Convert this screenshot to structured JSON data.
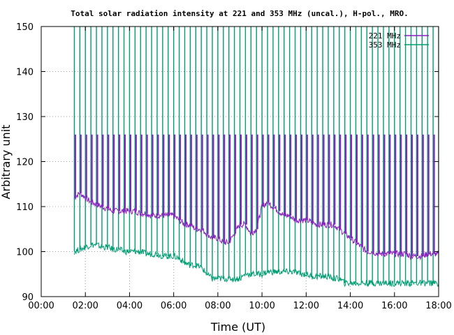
{
  "chart_data": {
    "type": "line",
    "title": "Total solar radiation intensity at 221 and 353 MHz (uncal.), H-pol., MRO.",
    "xlabel": "Time (UT)",
    "ylabel": "Arbitrary unit",
    "xlim": [
      0,
      18
    ],
    "ylim": [
      90,
      150
    ],
    "x_tick_labels": [
      "00:00",
      "02:00",
      "04:00",
      "06:00",
      "08:00",
      "10:00",
      "12:00",
      "14:00",
      "16:00",
      "18:00"
    ],
    "y_tick_labels": [
      "90",
      "100",
      "110",
      "120",
      "130",
      "140",
      "150"
    ],
    "grid": true,
    "legend_position": "top-right",
    "spike_interval_hours": 0.25,
    "series": [
      {
        "name": "221 MHz",
        "color": "#8a1fbf",
        "spike_top": 126,
        "x": [
          1.5,
          1.75,
          2.0,
          2.25,
          2.5,
          2.75,
          3.0,
          3.25,
          3.5,
          3.75,
          4.0,
          4.25,
          4.5,
          4.75,
          5.0,
          5.25,
          5.5,
          5.75,
          6.0,
          6.25,
          6.5,
          6.75,
          7.0,
          7.25,
          7.5,
          7.75,
          8.0,
          8.25,
          8.5,
          8.75,
          9.0,
          9.25,
          9.5,
          9.75,
          10.0,
          10.25,
          10.5,
          10.75,
          11.0,
          11.25,
          11.5,
          11.75,
          12.0,
          12.25,
          12.5,
          12.75,
          13.0,
          13.25,
          13.5,
          13.75,
          14.0,
          14.25,
          14.5,
          14.75,
          15.0,
          15.25,
          15.5,
          15.75,
          16.0,
          16.25,
          16.5,
          16.75,
          17.0,
          17.25,
          17.5,
          17.75,
          18.0
        ],
        "values": [
          112,
          113,
          112,
          111,
          110.5,
          110,
          109.5,
          109,
          109,
          109,
          109,
          109,
          108.5,
          108.5,
          108,
          108,
          108,
          108,
          108,
          107,
          106,
          106,
          105,
          105,
          104,
          103,
          103,
          102,
          102,
          104,
          106,
          106,
          104,
          105,
          110,
          111,
          110,
          109,
          108,
          108,
          107,
          107,
          107,
          106.5,
          106,
          106,
          106,
          106,
          105,
          104,
          103,
          102,
          101,
          100,
          100,
          99.5,
          99.5,
          99.5,
          99.5,
          99.5,
          99.5,
          99,
          99,
          99,
          99.5,
          99.5,
          99.5
        ]
      },
      {
        "name": "353 MHz",
        "color": "#009e73",
        "spike_top": 150,
        "x": [
          1.5,
          1.75,
          2.0,
          2.25,
          2.5,
          2.75,
          3.0,
          3.25,
          3.5,
          3.75,
          4.0,
          4.25,
          4.5,
          4.75,
          5.0,
          5.25,
          5.5,
          5.75,
          6.0,
          6.25,
          6.5,
          6.75,
          7.0,
          7.25,
          7.5,
          7.75,
          8.0,
          8.25,
          8.5,
          8.75,
          9.0,
          9.25,
          9.5,
          9.75,
          10.0,
          10.25,
          10.5,
          10.75,
          11.0,
          11.25,
          11.5,
          11.75,
          12.0,
          12.25,
          12.5,
          12.75,
          13.0,
          13.25,
          13.5,
          13.75,
          14.0,
          14.25,
          14.5,
          14.75,
          15.0,
          15.25,
          15.5,
          15.75,
          16.0,
          16.25,
          16.5,
          16.75,
          17.0,
          17.25,
          17.5,
          17.75,
          18.0
        ],
        "values": [
          100,
          100.5,
          101,
          101.5,
          101.5,
          101,
          101,
          100.5,
          100.5,
          100,
          100,
          100,
          100,
          99.5,
          99.5,
          99.5,
          99,
          99,
          99,
          98.5,
          97.5,
          97,
          97,
          96.5,
          95,
          94,
          94,
          94,
          94,
          94,
          94,
          95,
          95,
          95,
          95,
          95.5,
          95.5,
          95.5,
          95.5,
          95.5,
          95.5,
          95,
          95,
          94.5,
          94.5,
          94.5,
          94.5,
          94,
          94,
          93,
          93,
          93,
          93,
          93,
          93,
          93,
          93,
          93,
          93,
          93,
          93,
          93,
          93,
          93,
          93,
          93,
          93
        ]
      }
    ]
  }
}
